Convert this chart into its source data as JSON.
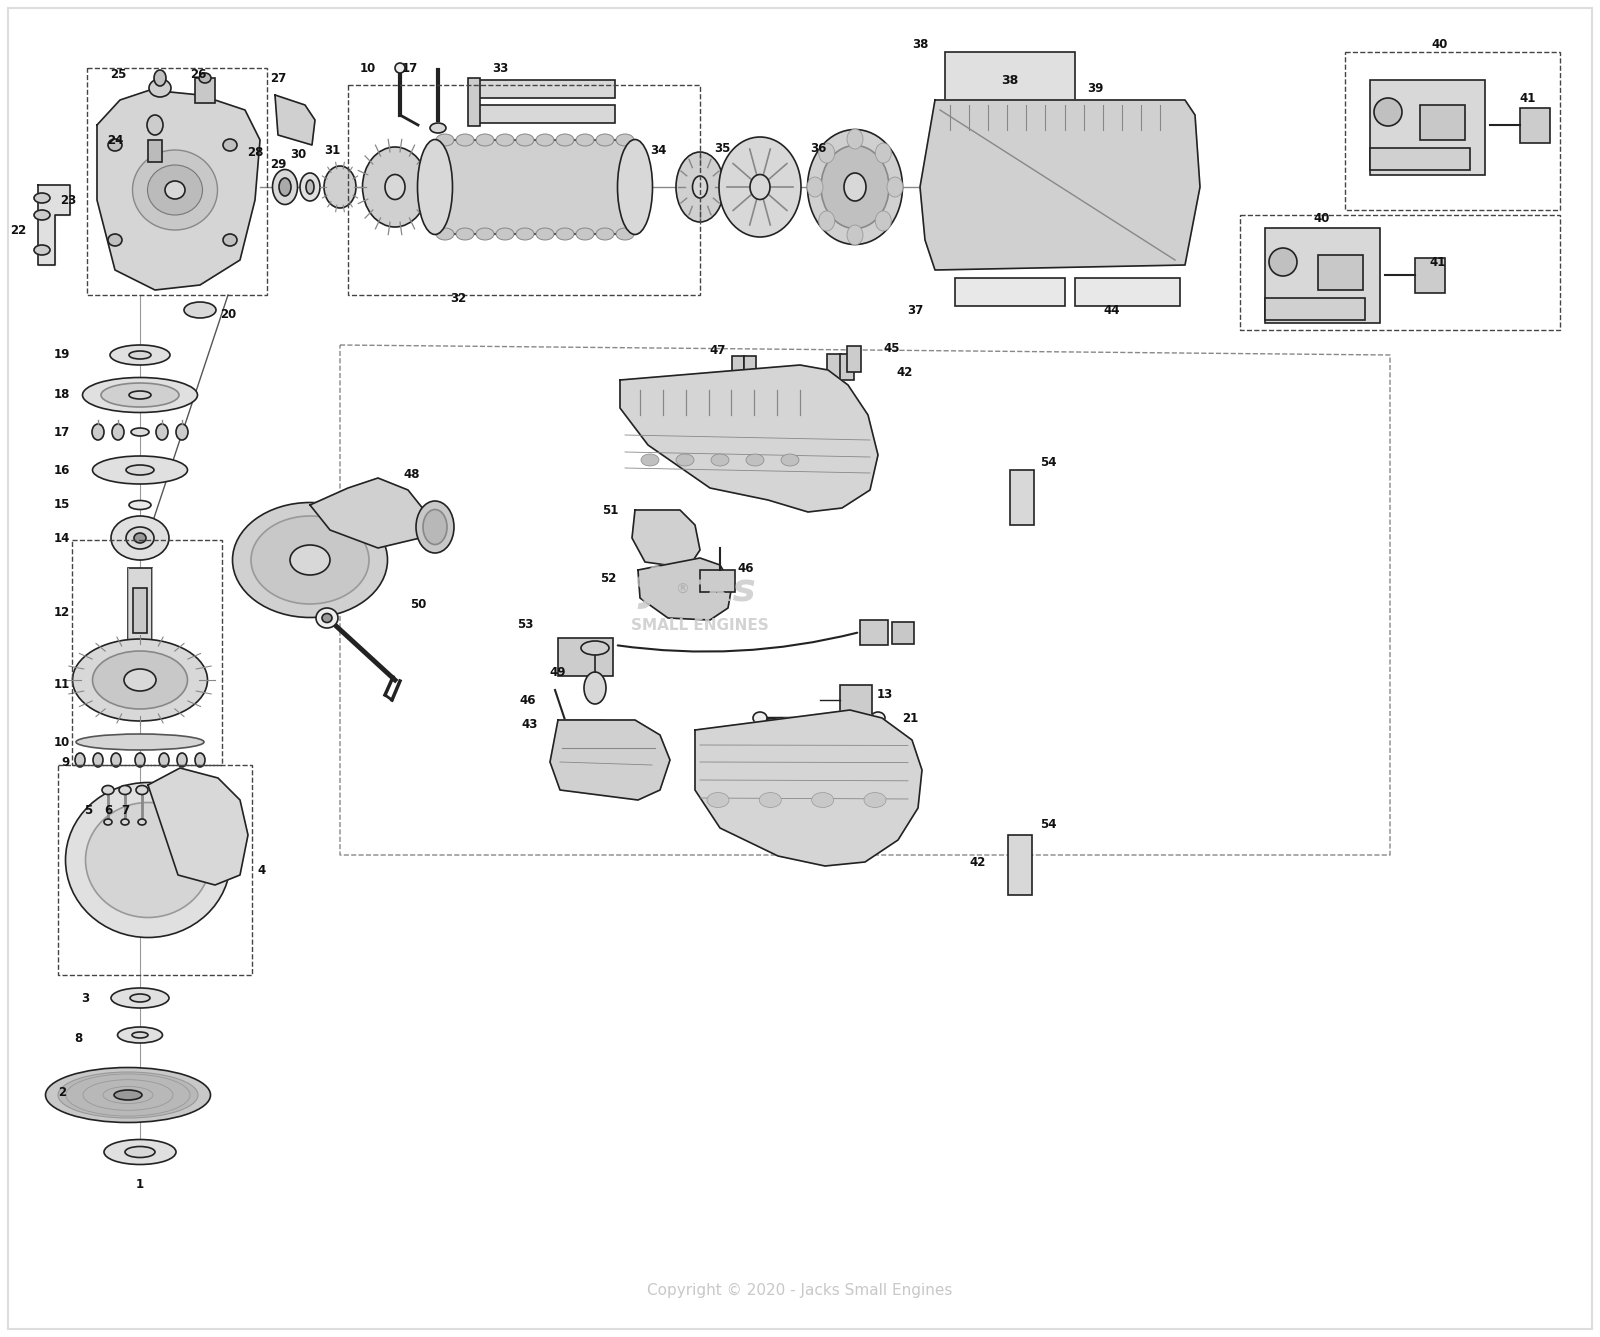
{
  "copyright_text": "Copyright © 2020 - Jacks Small Engines",
  "copyright_color": "#c8c8c8",
  "fig_width": 16.0,
  "fig_height": 13.37,
  "bg_color": "#ffffff",
  "line_color": "#222222",
  "gray_fill": "#d8d8d8",
  "light_fill": "#eeeeee",
  "dark_fill": "#aaaaaa",
  "label_font_size": 8.5,
  "watermark_color": "#cccccc"
}
